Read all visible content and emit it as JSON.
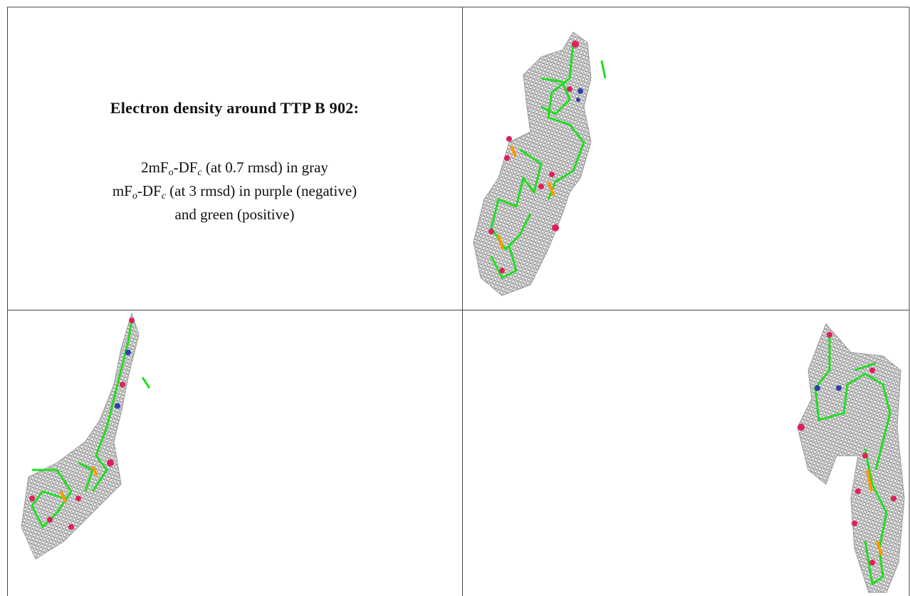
{
  "caption": {
    "title": "Electron density around TTP B 902:",
    "lines": [
      [
        "2mF",
        "o",
        "-DF",
        "c",
        " (at 0.7 rmsd) in gray"
      ],
      [
        "mF",
        "o",
        "-DF",
        "c",
        " (at 3 rmsd) in purple (negative)"
      ],
      [
        "and green (positive)"
      ]
    ]
  }
}
